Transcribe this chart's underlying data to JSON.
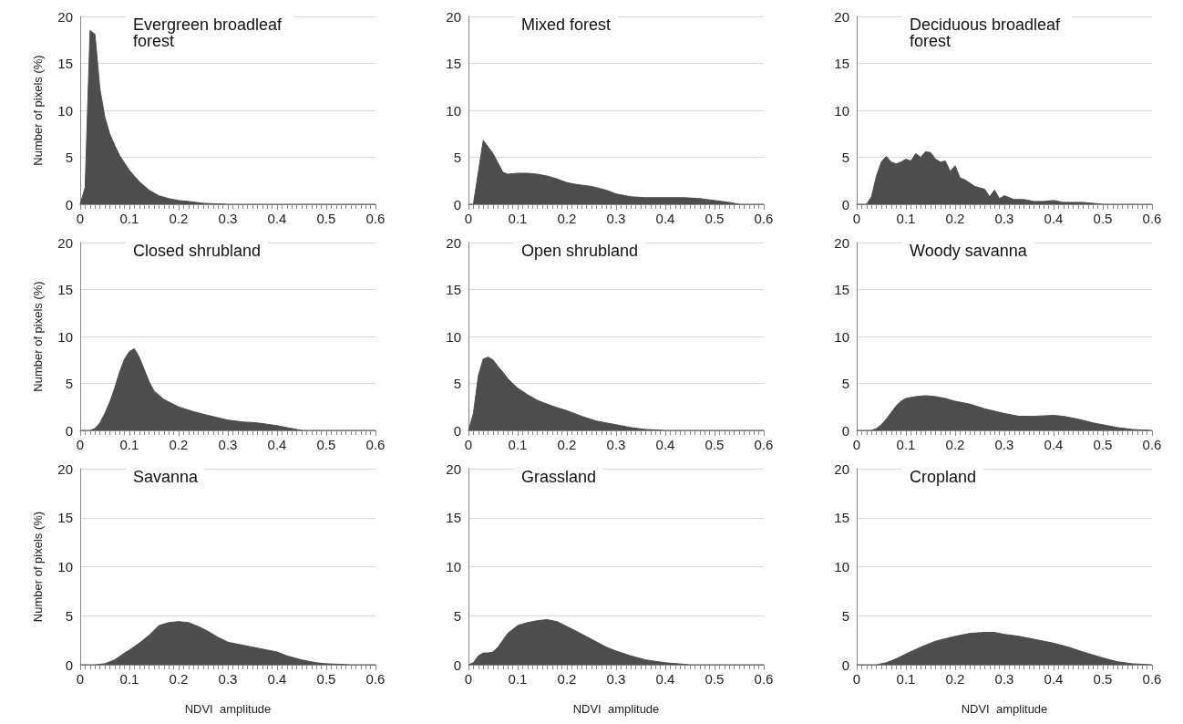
{
  "chart_data": [
    {
      "type": "area",
      "title": "Evergreen broadleaf forest",
      "ylabel": "Number of pixels (%)",
      "color": "#4d4d4d",
      "marker": "none",
      "grid": "y",
      "xlim": [
        0,
        0.6
      ],
      "xticks": [
        0,
        0.1,
        0.2,
        0.3,
        0.4,
        0.5,
        0.6
      ],
      "ylim": [
        0,
        20
      ],
      "yticks": [
        0,
        5,
        10,
        15,
        20
      ],
      "x": [
        0,
        0.01,
        0.02,
        0.03,
        0.04,
        0.05,
        0.06,
        0.07,
        0.08,
        0.1,
        0.12,
        0.14,
        0.16,
        0.18,
        0.2,
        0.22,
        0.25,
        0.3,
        0.4,
        0.5,
        0.6
      ],
      "values": [
        0,
        1.8,
        18.5,
        18.1,
        12.3,
        9.3,
        7.5,
        6.3,
        5.2,
        3.6,
        2.4,
        1.5,
        0.9,
        0.6,
        0.4,
        0.3,
        0.1,
        0,
        0,
        0,
        0
      ]
    },
    {
      "type": "area",
      "title": "Mixed forest",
      "color": "#4d4d4d",
      "marker": "none",
      "grid": "y",
      "xlim": [
        0,
        0.6
      ],
      "xticks": [
        0,
        0.1,
        0.2,
        0.3,
        0.4,
        0.5,
        0.6
      ],
      "ylim": [
        0,
        20
      ],
      "yticks": [
        0,
        5,
        10,
        15,
        20
      ],
      "x": [
        0,
        0.01,
        0.02,
        0.03,
        0.04,
        0.05,
        0.06,
        0.07,
        0.08,
        0.1,
        0.12,
        0.14,
        0.16,
        0.18,
        0.2,
        0.22,
        0.25,
        0.28,
        0.3,
        0.33,
        0.36,
        0.4,
        0.44,
        0.47,
        0.5,
        0.53,
        0.55,
        0.6
      ],
      "values": [
        0,
        0,
        3.4,
        6.8,
        6.1,
        5.4,
        4.4,
        3.4,
        3.2,
        3.3,
        3.3,
        3.2,
        3.0,
        2.7,
        2.3,
        2.1,
        1.9,
        1.5,
        1.1,
        0.8,
        0.7,
        0.7,
        0.7,
        0.6,
        0.4,
        0.2,
        0,
        0
      ]
    },
    {
      "type": "area",
      "title": "Deciduous broadleaf forest",
      "color": "#4d4d4d",
      "marker": "none",
      "grid": "y",
      "xlim": [
        0,
        0.6
      ],
      "xticks": [
        0,
        0.1,
        0.2,
        0.3,
        0.4,
        0.5,
        0.6
      ],
      "ylim": [
        0,
        20
      ],
      "yticks": [
        0,
        5,
        10,
        15,
        20
      ],
      "x": [
        0,
        0.02,
        0.03,
        0.04,
        0.05,
        0.06,
        0.07,
        0.08,
        0.09,
        0.1,
        0.11,
        0.12,
        0.13,
        0.14,
        0.15,
        0.16,
        0.17,
        0.18,
        0.19,
        0.2,
        0.21,
        0.22,
        0.24,
        0.26,
        0.27,
        0.28,
        0.29,
        0.3,
        0.32,
        0.34,
        0.36,
        0.38,
        0.4,
        0.42,
        0.44,
        0.46,
        0.48,
        0.5,
        0.6
      ],
      "values": [
        0,
        0,
        0.8,
        3.0,
        4.5,
        5.1,
        4.5,
        4.3,
        4.5,
        4.8,
        4.6,
        5.4,
        5.0,
        5.6,
        5.5,
        4.8,
        4.5,
        4.6,
        3.5,
        4.1,
        2.8,
        2.6,
        1.9,
        1.6,
        0.8,
        1.5,
        0.6,
        0.9,
        0.5,
        0.5,
        0.3,
        0.3,
        0.4,
        0.2,
        0.2,
        0.2,
        0.1,
        0,
        0
      ]
    },
    {
      "type": "area",
      "title": "Closed shrubland",
      "ylabel": "Number of pixels (%)",
      "color": "#4d4d4d",
      "marker": "none",
      "grid": "y",
      "xlim": [
        0,
        0.6
      ],
      "xticks": [
        0,
        0.1,
        0.2,
        0.3,
        0.4,
        0.5,
        0.6
      ],
      "ylim": [
        0,
        20
      ],
      "yticks": [
        0,
        5,
        10,
        15,
        20
      ],
      "x": [
        0,
        0.02,
        0.03,
        0.04,
        0.05,
        0.06,
        0.07,
        0.08,
        0.09,
        0.1,
        0.11,
        0.12,
        0.13,
        0.14,
        0.15,
        0.17,
        0.2,
        0.23,
        0.26,
        0.3,
        0.33,
        0.36,
        0.4,
        0.43,
        0.45,
        0.5,
        0.6
      ],
      "values": [
        0,
        0,
        0.2,
        0.8,
        1.8,
        3.0,
        4.5,
        6.2,
        7.6,
        8.4,
        8.7,
        7.8,
        6.5,
        5.2,
        4.2,
        3.3,
        2.5,
        2.0,
        1.6,
        1.1,
        0.9,
        0.8,
        0.5,
        0.2,
        0,
        0,
        0
      ]
    },
    {
      "type": "area",
      "title": "Open shrubland",
      "color": "#4d4d4d",
      "marker": "none",
      "grid": "y",
      "xlim": [
        0,
        0.6
      ],
      "xticks": [
        0,
        0.1,
        0.2,
        0.3,
        0.4,
        0.5,
        0.6
      ],
      "ylim": [
        0,
        20
      ],
      "yticks": [
        0,
        5,
        10,
        15,
        20
      ],
      "x": [
        0,
        0.01,
        0.02,
        0.03,
        0.04,
        0.05,
        0.06,
        0.07,
        0.08,
        0.1,
        0.12,
        0.14,
        0.17,
        0.2,
        0.23,
        0.26,
        0.3,
        0.33,
        0.36,
        0.4,
        0.5,
        0.6
      ],
      "values": [
        0,
        1.8,
        5.8,
        7.6,
        7.8,
        7.5,
        6.8,
        6.2,
        5.5,
        4.5,
        3.8,
        3.2,
        2.6,
        2.1,
        1.5,
        1.0,
        0.6,
        0.3,
        0.1,
        0,
        0,
        0
      ]
    },
    {
      "type": "area",
      "title": "Woody savanna",
      "color": "#4d4d4d",
      "marker": "none",
      "grid": "y",
      "xlim": [
        0,
        0.6
      ],
      "xticks": [
        0,
        0.1,
        0.2,
        0.3,
        0.4,
        0.5,
        0.6
      ],
      "ylim": [
        0,
        20
      ],
      "yticks": [
        0,
        5,
        10,
        15,
        20
      ],
      "x": [
        0,
        0.03,
        0.04,
        0.05,
        0.06,
        0.07,
        0.08,
        0.09,
        0.1,
        0.12,
        0.14,
        0.16,
        0.18,
        0.2,
        0.23,
        0.26,
        0.3,
        0.33,
        0.36,
        0.4,
        0.42,
        0.45,
        0.48,
        0.5,
        0.53,
        0.56,
        0.6
      ],
      "values": [
        0,
        0,
        0.2,
        0.6,
        1.2,
        1.9,
        2.6,
        3.1,
        3.4,
        3.6,
        3.7,
        3.6,
        3.4,
        3.1,
        2.8,
        2.3,
        1.8,
        1.5,
        1.5,
        1.6,
        1.5,
        1.2,
        0.8,
        0.6,
        0.3,
        0.1,
        0
      ]
    },
    {
      "type": "area",
      "title": "Savanna",
      "ylabel": "Number of pixels (%)",
      "xlabel": "NDVI  amplitude",
      "color": "#4d4d4d",
      "marker": "none",
      "grid": "y",
      "xlim": [
        0,
        0.6
      ],
      "xticks": [
        0,
        0.1,
        0.2,
        0.3,
        0.4,
        0.5,
        0.6
      ],
      "ylim": [
        0,
        20
      ],
      "yticks": [
        0,
        5,
        10,
        15,
        20
      ],
      "x": [
        0,
        0.03,
        0.05,
        0.07,
        0.09,
        0.1,
        0.12,
        0.14,
        0.16,
        0.18,
        0.2,
        0.22,
        0.24,
        0.26,
        0.28,
        0.3,
        0.33,
        0.36,
        0.4,
        0.42,
        0.45,
        0.48,
        0.5,
        0.55,
        0.6
      ],
      "values": [
        0,
        0,
        0.1,
        0.5,
        1.2,
        1.5,
        2.2,
        3.0,
        4.0,
        4.3,
        4.4,
        4.3,
        3.9,
        3.4,
        2.8,
        2.3,
        2.0,
        1.7,
        1.3,
        0.9,
        0.5,
        0.2,
        0.1,
        0,
        0
      ]
    },
    {
      "type": "area",
      "title": "Grassland",
      "xlabel": "NDVI  amplitude",
      "color": "#4d4d4d",
      "marker": "none",
      "grid": "y",
      "xlim": [
        0,
        0.6
      ],
      "xticks": [
        0,
        0.1,
        0.2,
        0.3,
        0.4,
        0.5,
        0.6
      ],
      "ylim": [
        0,
        20
      ],
      "yticks": [
        0,
        5,
        10,
        15,
        20
      ],
      "x": [
        0,
        0.01,
        0.02,
        0.03,
        0.04,
        0.05,
        0.06,
        0.08,
        0.1,
        0.12,
        0.14,
        0.16,
        0.18,
        0.2,
        0.22,
        0.25,
        0.28,
        0.3,
        0.33,
        0.36,
        0.4,
        0.45,
        0.5,
        0.6
      ],
      "values": [
        0,
        0.2,
        0.9,
        1.2,
        1.2,
        1.3,
        1.8,
        3.2,
        4.0,
        4.3,
        4.5,
        4.6,
        4.4,
        3.9,
        3.4,
        2.6,
        1.8,
        1.4,
        0.9,
        0.5,
        0.2,
        0,
        0,
        0
      ]
    },
    {
      "type": "area",
      "title": "Cropland",
      "xlabel": "NDVI  amplitude",
      "color": "#4d4d4d",
      "marker": "none",
      "grid": "y",
      "xlim": [
        0,
        0.6
      ],
      "xticks": [
        0,
        0.1,
        0.2,
        0.3,
        0.4,
        0.5,
        0.6
      ],
      "ylim": [
        0,
        20
      ],
      "yticks": [
        0,
        5,
        10,
        15,
        20
      ],
      "x": [
        0,
        0.04,
        0.06,
        0.08,
        0.1,
        0.13,
        0.16,
        0.2,
        0.23,
        0.26,
        0.28,
        0.3,
        0.33,
        0.36,
        0.4,
        0.43,
        0.46,
        0.5,
        0.53,
        0.56,
        0.6
      ],
      "values": [
        0,
        0,
        0.2,
        0.6,
        1.1,
        1.8,
        2.4,
        2.9,
        3.2,
        3.3,
        3.3,
        3.1,
        2.9,
        2.6,
        2.2,
        1.8,
        1.3,
        0.7,
        0.3,
        0.1,
        0
      ]
    }
  ]
}
